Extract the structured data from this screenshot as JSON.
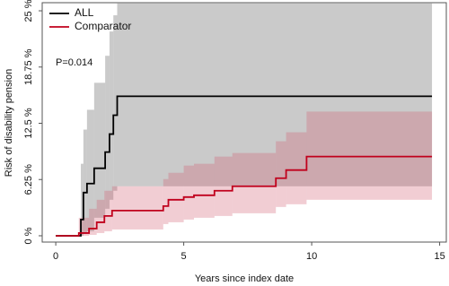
{
  "chart_data": {
    "type": "step",
    "x_label": "Years since index date",
    "y_label": "Risk of disability pension",
    "annotation": "P=0.014",
    "xlim": [
      -0.53,
      15.26
    ],
    "ylim": [
      -0.7,
      25.9
    ],
    "xticks": [
      0,
      5,
      10,
      15
    ],
    "yticks": [
      {
        "value": 0,
        "label": "0 %"
      },
      {
        "value": 6.25,
        "label": "6.25 %"
      },
      {
        "value": 12.5,
        "label": "12.5 %"
      },
      {
        "value": 18.75,
        "label": "18.75 %"
      },
      {
        "value": 25,
        "label": "25 %"
      }
    ],
    "series": [
      {
        "name": "ALL",
        "color": "#000000",
        "band_color": "rgba(150,150,150,0.5)",
        "x": [
          0,
          0.98,
          1.08,
          1.22,
          1.5,
          1.93,
          2.1,
          2.25,
          2.4,
          14.7
        ],
        "values": [
          0,
          1.8,
          4.8,
          5.8,
          7.5,
          9.3,
          11.3,
          13.4,
          15.5,
          15.5
        ],
        "lower": [
          0,
          0,
          0.2,
          0.5,
          2,
          3,
          4,
          5,
          5.5,
          5.5
        ],
        "upper": [
          0,
          8,
          11.8,
          14,
          17,
          20,
          22.7,
          24.5,
          25.9,
          25.9
        ]
      },
      {
        "name": "Comparator",
        "color": "#c0001c",
        "band_color": "rgba(210,90,110,0.3)",
        "x": [
          0,
          0.9,
          1.3,
          1.6,
          1.9,
          2.2,
          4.2,
          4.4,
          5,
          5.4,
          6.2,
          6.9,
          8.6,
          9,
          9.8,
          14.7
        ],
        "values": [
          0,
          0.3,
          0.8,
          1.5,
          2.2,
          2.8,
          3.3,
          4,
          4.3,
          4.5,
          5,
          5.5,
          6.4,
          7.3,
          8.8,
          8.8
        ],
        "lower": [
          0,
          0,
          0.1,
          0.3,
          0.5,
          0.7,
          1.3,
          1.5,
          1.8,
          2,
          2.2,
          2.5,
          3.2,
          3.5,
          4,
          4
        ],
        "upper": [
          0,
          2,
          3,
          4,
          5,
          5.5,
          6.3,
          7,
          7.8,
          8,
          8.8,
          9.2,
          10.5,
          11.5,
          13.8,
          13.8
        ]
      }
    ]
  }
}
